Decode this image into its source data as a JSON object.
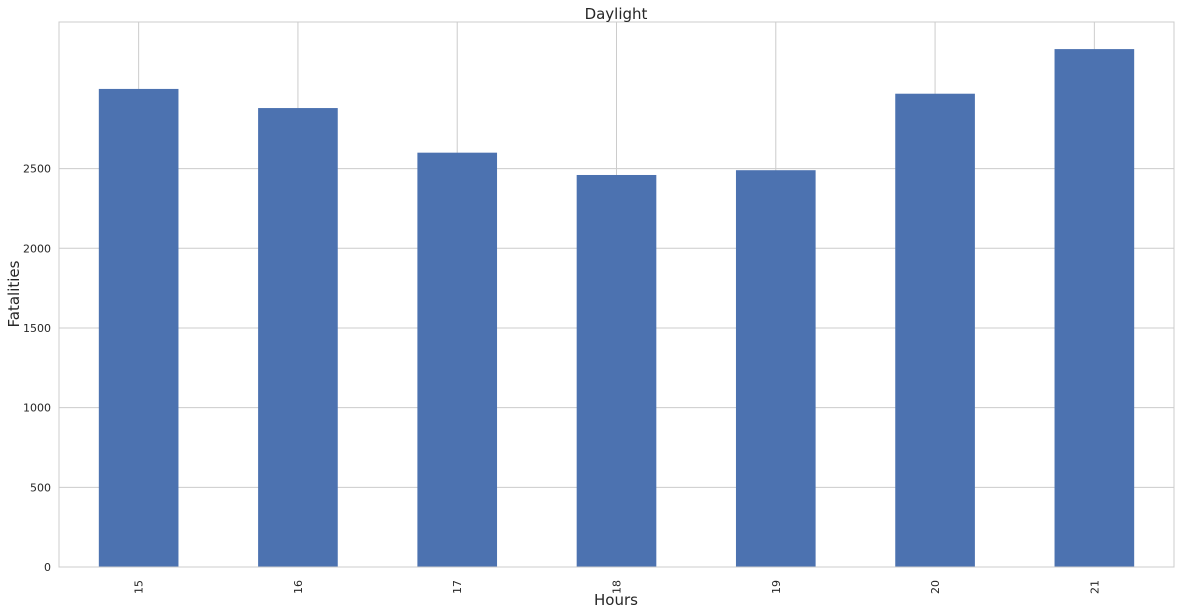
{
  "chart_data": {
    "type": "bar",
    "title": "Daylight",
    "xlabel": "Hours",
    "ylabel": "Fatalities",
    "categories": [
      "15",
      "16",
      "17",
      "18",
      "19",
      "20",
      "21"
    ],
    "values": [
      3000,
      2880,
      2600,
      2460,
      2490,
      2970,
      3250
    ],
    "ylim": [
      0,
      3420
    ],
    "yticks": [
      0,
      500,
      1000,
      1500,
      2000,
      2500
    ],
    "bar_color": "#4c72b0",
    "grid": true,
    "x_tick_rotation": "vertical"
  }
}
